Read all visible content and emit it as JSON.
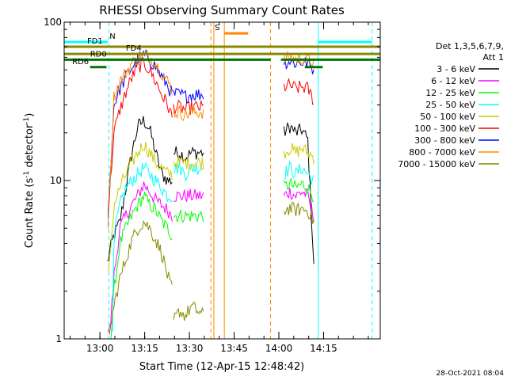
{
  "chart_data": {
    "type": "line",
    "title": "RHESSI Observing Summary Count Rates",
    "xlabel": "Start Time (12-Apr-15 12:48:42)",
    "ylabel": "Count Rate (s⁻¹ detector⁻¹)",
    "ylabel_parts": {
      "main": "Count Rate (s",
      "sup1": "-1",
      "mid": " detector",
      "sup2": "-1",
      "end": ")"
    },
    "ylog": true,
    "ylim": [
      1,
      100
    ],
    "y_ticks": [
      {
        "value": 1,
        "label": "1"
      },
      {
        "value": 10,
        "label": "10"
      },
      {
        "value": 100,
        "label": "100"
      }
    ],
    "xlim_minutes": [
      -0.7,
      105.3
    ],
    "x_ticks": [
      {
        "value": 11.3,
        "label": "13:00"
      },
      {
        "value": 26.3,
        "label": "13:15"
      },
      {
        "value": 41.3,
        "label": "13:30"
      },
      {
        "value": 56.3,
        "label": "13:45"
      },
      {
        "value": 71.3,
        "label": "14:00"
      },
      {
        "value": 86.3,
        "label": "14:15"
      }
    ],
    "legend": {
      "placement": "right",
      "header": [
        "Det 1,3,5,6,7,9,",
        "Att 1"
      ]
    },
    "timestamp": "28-Oct-2021 08:04",
    "series": [
      {
        "name": "3 - 6 keV",
        "color": "#000000",
        "segments": [
          {
            "times": [
              13.8,
              14.5,
              16,
              18,
              20,
              22,
              24,
              26,
              28,
              30,
              32,
              34,
              35.5
            ],
            "values": [
              3,
              3.5,
              4.5,
              5.5,
              9,
              15,
              22,
              24,
              21,
              15,
              11,
              10,
              10
            ]
          },
          {
            "times": [
              36,
              38,
              40,
              42,
              44,
              46
            ],
            "values": [
              15,
              15,
              14,
              15,
              15,
              15
            ]
          },
          {
            "times": [
              73,
              75,
              77,
              79,
              81,
              83
            ],
            "values": [
              20,
              22,
              20,
              21,
              18,
              3
            ]
          }
        ]
      },
      {
        "name": "6 - 12 keV",
        "color": "#ff00ff",
        "segments": [
          {
            "times": [
              14.5,
              16,
              18,
              20,
              22,
              24,
              26,
              28,
              30,
              32,
              34,
              35.5
            ],
            "values": [
              1,
              2.5,
              5,
              6,
              7,
              8,
              9.5,
              8.5,
              7.5,
              7,
              6.5,
              6
            ]
          },
          {
            "times": [
              36,
              38,
              40,
              42,
              44,
              46
            ],
            "values": [
              8,
              8,
              8,
              8,
              8,
              8
            ]
          },
          {
            "times": [
              73,
              75,
              77,
              79,
              81,
              83
            ],
            "values": [
              8,
              8.5,
              8,
              8.5,
              8,
              6
            ]
          }
        ]
      },
      {
        "name": "12 - 25 keV",
        "color": "#00ff00",
        "segments": [
          {
            "times": [
              15,
              16,
              18,
              20,
              22,
              24,
              26,
              28,
              30,
              32,
              34,
              35.5
            ],
            "values": [
              1,
              2,
              4,
              5,
              6,
              7,
              8,
              7,
              6.5,
              5.5,
              5,
              4.5
            ]
          },
          {
            "times": [
              36,
              38,
              40,
              42,
              44,
              46
            ],
            "values": [
              6,
              6,
              6,
              6,
              6,
              6
            ]
          },
          {
            "times": [
              73,
              75,
              77,
              79,
              81,
              83
            ],
            "values": [
              9,
              9.5,
              9,
              9.5,
              9,
              8
            ]
          }
        ]
      },
      {
        "name": "25 - 50 keV",
        "color": "#00ffff",
        "segments": [
          {
            "times": [
              15.5,
              16,
              18,
              20,
              22,
              24,
              26,
              28,
              30,
              32,
              34,
              35.5
            ],
            "values": [
              1,
              4.5,
              7,
              9,
              10,
              11,
              12,
              11,
              10,
              9,
              8,
              8
            ]
          },
          {
            "times": [
              36,
              38,
              40,
              42,
              44,
              46
            ],
            "values": [
              12,
              12,
              11,
              12,
              12,
              12
            ]
          },
          {
            "times": [
              73,
              75,
              77,
              79,
              81,
              83
            ],
            "values": [
              11,
              12,
              11,
              12,
              11,
              10
            ]
          }
        ]
      },
      {
        "name": "50 - 100 keV",
        "color": "#cccc00",
        "segments": [
          {
            "times": [
              14.2,
              16,
              18,
              20,
              22,
              24,
              26,
              28,
              30,
              32,
              34,
              35.5
            ],
            "values": [
              2.5,
              7,
              9,
              11,
              13,
              15,
              17,
              15,
              13,
              12,
              11,
              11
            ]
          },
          {
            "times": [
              36,
              38,
              40,
              42,
              44,
              46
            ],
            "values": [
              13,
              13,
              13,
              13,
              13,
              13
            ]
          },
          {
            "times": [
              73,
              75,
              77,
              79,
              81,
              83
            ],
            "values": [
              15,
              16,
              15,
              16,
              15,
              14
            ]
          }
        ]
      },
      {
        "name": "100 - 300 keV",
        "color": "#ff0000",
        "segments": [
          {
            "times": [
              14,
              16,
              18,
              20,
              22,
              24,
              26,
              28,
              30,
              32,
              34,
              35.5
            ],
            "values": [
              6,
              20,
              28,
              36,
              45,
              52,
              55,
              50,
              42,
              35,
              30,
              25
            ]
          },
          {
            "times": [
              36,
              38,
              40,
              42,
              44,
              46
            ],
            "values": [
              29,
              29,
              28,
              29,
              29,
              29
            ]
          },
          {
            "times": [
              73,
              75,
              77,
              79,
              81,
              83
            ],
            "values": [
              39,
              40,
              38,
              39,
              38,
              32
            ]
          }
        ]
      },
      {
        "name": "300 - 800 keV",
        "color": "#0000ff",
        "segments": [
          {
            "times": [
              14,
              16,
              18,
              20,
              22,
              24,
              26,
              28,
              30,
              32,
              34,
              35.5
            ],
            "values": [
              6,
              30,
              38,
              45,
              52,
              58,
              62,
              58,
              52,
              45,
              40,
              35
            ]
          },
          {
            "times": [
              36,
              38,
              40,
              42,
              44,
              46
            ],
            "values": [
              35,
              35,
              34,
              35,
              35,
              35
            ]
          },
          {
            "times": [
              73,
              75,
              77,
              79,
              81,
              83
            ],
            "values": [
              55,
              57,
              55,
              56,
              55,
              50
            ]
          }
        ]
      },
      {
        "name": "800 - 7000 keV",
        "color": "#ff8800",
        "segments": [
          {
            "times": [
              14,
              16,
              18,
              20,
              22,
              24,
              26,
              28,
              30,
              32,
              34,
              35.5
            ],
            "values": [
              5.5,
              34,
              42,
              48,
              55,
              60,
              62,
              60,
              55,
              48,
              42,
              38
            ]
          },
          {
            "times": [
              36,
              38,
              40,
              42,
              44,
              46
            ],
            "values": [
              27,
              27,
              26,
              27,
              27,
              27
            ]
          },
          {
            "times": [
              73,
              75,
              77,
              79,
              81,
              83
            ],
            "values": [
              58,
              60,
              58,
              59,
              58,
              56
            ]
          }
        ]
      },
      {
        "name": "7000 - 15000 keV",
        "color": "#888800",
        "segments": [
          {
            "times": [
              14,
              16,
              18,
              20,
              22,
              24,
              26,
              28,
              30,
              32,
              34,
              35.5
            ],
            "values": [
              1,
              1.6,
              2.4,
              3.2,
              4.2,
              5,
              5.5,
              5,
              4.2,
              3.5,
              2.5,
              2
            ]
          },
          {
            "times": [
              36,
              38,
              40,
              42,
              44,
              46
            ],
            "values": [
              1.3,
              1.5,
              1.4,
              1.6,
              1.5,
              1.4
            ]
          },
          {
            "times": [
              73,
              75,
              77,
              79,
              81,
              83
            ],
            "values": [
              6.5,
              6.7,
              6.5,
              6.6,
              6.5,
              5.5
            ]
          }
        ]
      }
    ],
    "flag_bars": [
      {
        "label": "N",
        "color": "#00ffff",
        "level": 75,
        "spans": [
          [
            -0.7,
            14
          ],
          [
            84.5,
            102.6
          ]
        ]
      },
      {
        "label": "FD1",
        "color": "#888800",
        "level": 70,
        "spans": [
          [
            -0.7,
            105.3
          ]
        ]
      },
      {
        "label": "FD4",
        "color": "#888800",
        "level": 63,
        "spans": [
          [
            -0.7,
            105.3
          ]
        ]
      },
      {
        "label": "RD0",
        "color": "#007700",
        "level": 58,
        "spans": [
          [
            -0.7,
            68.5
          ],
          [
            72,
            105.3
          ]
        ]
      },
      {
        "label": "RD6",
        "color": "#007700",
        "level": 52,
        "spans": [
          [
            8,
            13.5
          ],
          [
            80,
            86
          ]
        ]
      },
      {
        "label": "S",
        "color": "#ff8800",
        "level": 85,
        "spans": [
          [
            53,
            61
          ]
        ]
      }
    ],
    "vlines": [
      {
        "time": 14.3,
        "color": "#00ffff",
        "dash": true
      },
      {
        "time": 48.5,
        "color": "#ff8800",
        "dash": true
      },
      {
        "time": 49.5,
        "color": "#ff8800",
        "dash": false
      },
      {
        "time": 53,
        "color": "#ff8800",
        "dash": false
      },
      {
        "time": 68.5,
        "color": "#ff8800",
        "dash": true
      },
      {
        "time": 84.5,
        "color": "#00ffff",
        "dash": false
      },
      {
        "time": 102.6,
        "color": "#00ffff",
        "dash": true
      }
    ]
  }
}
